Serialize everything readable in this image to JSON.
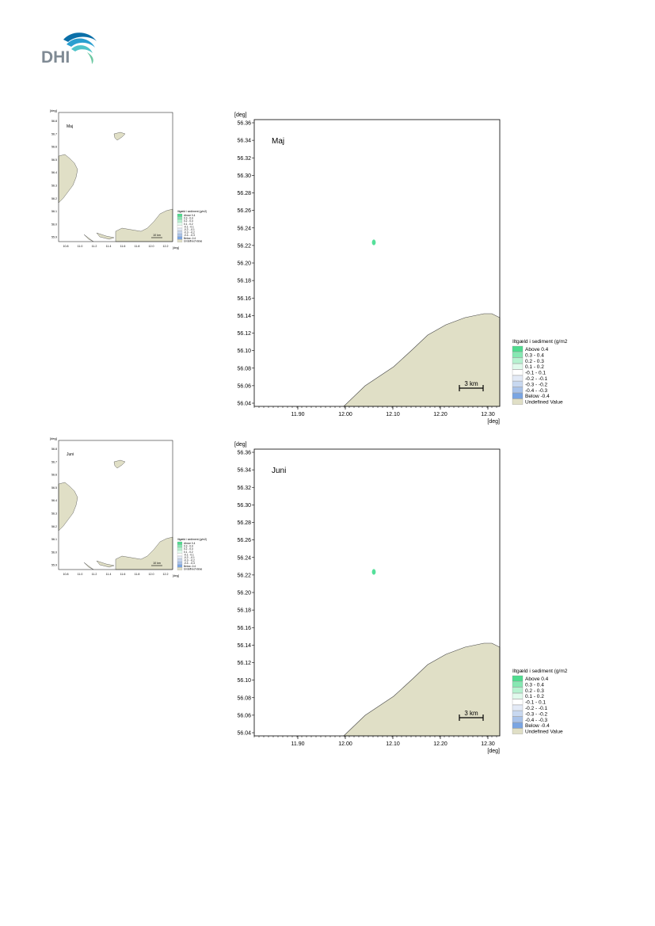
{
  "logo": {
    "text": "DHI"
  },
  "colors": {
    "land": "#e0dfc6",
    "logo_text": "#7f8a94",
    "logo_wave_dark": "#0a6fa8",
    "logo_wave_mid": "#2a9fd0",
    "logo_wave_light": "#4ec3c9",
    "logo_wave_green": "#6cc8a2",
    "sediment_spot": "#55e09a"
  },
  "maps": [
    {
      "month": "Maj",
      "large": {
        "unit_top": "[deg]",
        "unit_bottom": "[deg]",
        "y_ticks": [
          "56.36",
          "56.34",
          "56.32",
          "56.30",
          "56.28",
          "56.26",
          "56.24",
          "56.22",
          "56.20",
          "56.18",
          "56.16",
          "56.14",
          "56.12",
          "56.10",
          "56.08",
          "56.06",
          "56.04"
        ],
        "x_ticks": [
          "11.90",
          "12.00",
          "12.10",
          "12.20",
          "12.30"
        ],
        "scale_bar": "3 km"
      },
      "small": {
        "unit_top": "[deg]",
        "unit_bottom": "[deg]",
        "y_ticks": [
          "56.8",
          "56.7",
          "56.6",
          "56.5",
          "56.4",
          "56.3",
          "56.2",
          "56.1",
          "56.0",
          "55.9"
        ],
        "x_ticks": [
          "10.8",
          "11.0",
          "11.2",
          "11.4",
          "11.6",
          "11.8",
          "12.0",
          "12.2"
        ],
        "scale_bar": "10 km"
      }
    },
    {
      "month": "Juni",
      "large": {
        "unit_top": "[deg]",
        "unit_bottom": "[deg]",
        "y_ticks": [
          "56.36",
          "56.34",
          "56.32",
          "56.30",
          "56.28",
          "56.26",
          "56.24",
          "56.22",
          "56.20",
          "56.18",
          "56.16",
          "56.14",
          "56.12",
          "56.10",
          "56.08",
          "56.06",
          "56.04"
        ],
        "x_ticks": [
          "11.90",
          "12.00",
          "12.10",
          "12.20",
          "12.30"
        ],
        "scale_bar": "3 km"
      },
      "small": {
        "unit_top": "[deg]",
        "unit_bottom": "[deg]",
        "y_ticks": [
          "56.8",
          "56.7",
          "56.6",
          "56.5",
          "56.4",
          "56.3",
          "56.2",
          "56.1",
          "56.0",
          "55.9"
        ],
        "x_ticks": [
          "10.8",
          "11.0",
          "11.2",
          "11.4",
          "11.6",
          "11.8",
          "12.0",
          "12.2"
        ],
        "scale_bar": "10 km"
      }
    }
  ],
  "legend": {
    "title": "Iltgæld i sediment (g/m2",
    "small_title": "Iltgæld i sediment (g/m2)",
    "items": [
      {
        "label": "Above  0.4",
        "color": "#4fdc8f"
      },
      {
        "label": "0.3 -  0.4",
        "color": "#86e8b2"
      },
      {
        "label": "0.2 -  0.3",
        "color": "#b6f2d0"
      },
      {
        "label": "0.1 -  0.2",
        "color": "#e0faec"
      },
      {
        "label": "-0.1 -  0.1",
        "color": "#ffffff"
      },
      {
        "label": "-0.2 - -0.1",
        "color": "#e3eaf6"
      },
      {
        "label": "-0.3 - -0.2",
        "color": "#c8d8f0"
      },
      {
        "label": "-0.4 - -0.3",
        "color": "#a9c3ea"
      },
      {
        "label": "Below -0.4",
        "color": "#7aa5e2"
      },
      {
        "label": "Undefined Value",
        "color": "#e0dfc6"
      }
    ]
  }
}
